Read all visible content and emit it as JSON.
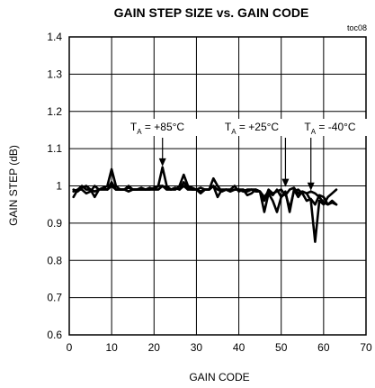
{
  "chart_data": {
    "type": "line",
    "title": "GAIN STEP SIZE vs. GAIN CODE",
    "figure_tag": "toc08",
    "xlabel": "GAIN CODE",
    "ylabel": "GAIN STEP (dB)",
    "xlim": [
      0,
      70
    ],
    "ylim": [
      0.6,
      1.4
    ],
    "x_ticks": [
      "0",
      "10",
      "20",
      "30",
      "40",
      "50",
      "60",
      "70"
    ],
    "y_ticks": [
      "0.6",
      "0.7",
      "0.8",
      "0.9",
      "1",
      "1.1",
      "1.2",
      "1.3",
      "1.4"
    ],
    "grid": true,
    "series": [
      {
        "name": "TA = +85°C",
        "x": [
          1,
          2,
          3,
          4,
          5,
          6,
          7,
          8,
          9,
          10,
          11,
          12,
          13,
          14,
          15,
          16,
          17,
          18,
          19,
          20,
          21,
          22,
          23,
          24,
          25,
          26,
          27,
          28,
          29,
          30,
          31,
          32,
          33,
          34,
          35,
          36,
          37,
          38,
          39,
          40,
          41,
          42,
          43,
          44,
          45,
          46,
          47,
          48,
          49,
          50,
          51,
          52,
          53,
          54,
          55,
          56,
          57,
          58,
          59,
          60,
          61,
          62,
          63
        ],
        "values": [
          0.99,
          0.985,
          0.995,
          1.0,
          0.99,
          0.985,
          0.99,
          0.995,
          1.0,
          1.045,
          1.0,
          0.99,
          0.99,
          0.985,
          0.99,
          0.99,
          0.99,
          0.99,
          0.995,
          0.99,
          1.0,
          1.05,
          1.0,
          0.99,
          0.99,
          1.0,
          1.03,
          1.0,
          0.995,
          0.99,
          0.985,
          0.99,
          0.99,
          1.02,
          1.0,
          0.985,
          0.99,
          0.99,
          1.0,
          0.985,
          0.99,
          0.975,
          0.98,
          0.99,
          0.985,
          0.96,
          0.99,
          0.98,
          0.985,
          0.99,
          0.975,
          0.99,
          0.995,
          0.98,
          0.985,
          0.98,
          0.985,
          0.98,
          0.97,
          0.955,
          0.95,
          0.96,
          0.95
        ]
      },
      {
        "name": "TA = +25°C",
        "x": [
          1,
          2,
          3,
          4,
          5,
          6,
          7,
          8,
          9,
          10,
          11,
          12,
          13,
          14,
          15,
          16,
          17,
          18,
          19,
          20,
          21,
          22,
          23,
          24,
          25,
          26,
          27,
          28,
          29,
          30,
          31,
          32,
          33,
          34,
          35,
          36,
          37,
          38,
          39,
          40,
          41,
          42,
          43,
          44,
          45,
          46,
          47,
          48,
          49,
          50,
          51,
          52,
          53,
          54,
          55,
          56,
          57,
          58,
          59,
          60,
          61,
          62,
          63
        ],
        "values": [
          0.985,
          0.99,
          0.99,
          0.98,
          0.985,
          1.0,
          0.99,
          0.99,
          0.99,
          1.01,
          0.99,
          0.99,
          0.99,
          1.0,
          0.99,
          0.99,
          0.995,
          0.99,
          0.99,
          0.995,
          1.0,
          1.0,
          0.995,
          0.99,
          0.995,
          0.99,
          1.01,
          0.995,
          0.99,
          0.99,
          0.98,
          0.99,
          0.99,
          1.0,
          0.99,
          0.985,
          0.99,
          0.985,
          0.99,
          0.99,
          0.99,
          0.985,
          0.99,
          0.99,
          0.985,
          0.97,
          0.985,
          0.975,
          0.99,
          0.97,
          0.98,
          0.94,
          0.985,
          0.99,
          0.98,
          0.96,
          0.965,
          0.95,
          0.975,
          0.97,
          0.95,
          0.955,
          0.95
        ]
      },
      {
        "name": "TA = -40°C",
        "x": [
          1,
          2,
          3,
          4,
          5,
          6,
          7,
          8,
          9,
          10,
          11,
          12,
          13,
          14,
          15,
          16,
          17,
          18,
          19,
          20,
          21,
          22,
          23,
          24,
          25,
          26,
          27,
          28,
          29,
          30,
          31,
          32,
          33,
          34,
          35,
          36,
          37,
          38,
          39,
          40,
          41,
          42,
          43,
          44,
          45,
          46,
          47,
          48,
          49,
          50,
          51,
          52,
          53,
          54,
          55,
          56,
          57,
          58,
          59,
          60,
          61,
          62,
          63
        ],
        "values": [
          0.97,
          0.99,
          1.0,
          0.99,
          0.99,
          0.97,
          0.99,
          0.995,
          0.99,
          1.0,
          0.99,
          0.99,
          0.99,
          0.995,
          0.99,
          0.99,
          0.99,
          0.99,
          0.99,
          0.99,
          0.99,
          1.0,
          0.99,
          0.99,
          0.995,
          0.99,
          1.0,
          0.99,
          0.99,
          0.99,
          0.995,
          0.99,
          0.99,
          1.0,
          0.97,
          0.99,
          0.99,
          0.985,
          0.99,
          0.99,
          0.985,
          0.99,
          0.99,
          0.985,
          0.985,
          0.93,
          0.98,
          0.96,
          0.93,
          0.97,
          0.985,
          0.93,
          0.99,
          0.97,
          0.985,
          0.98,
          0.96,
          0.85,
          0.96,
          0.95,
          0.97,
          0.98,
          0.99
        ]
      }
    ],
    "annotations": [
      {
        "main": "T",
        "sub": "A",
        "rest": " = +85°C",
        "target": [
          22,
          1.05
        ]
      },
      {
        "main": "T",
        "sub": "A",
        "rest": " = +25°C",
        "target": [
          51,
          0.995
        ]
      },
      {
        "main": "T",
        "sub": "A",
        "rest": " = -40°C",
        "target": [
          57,
          0.985
        ]
      }
    ]
  }
}
